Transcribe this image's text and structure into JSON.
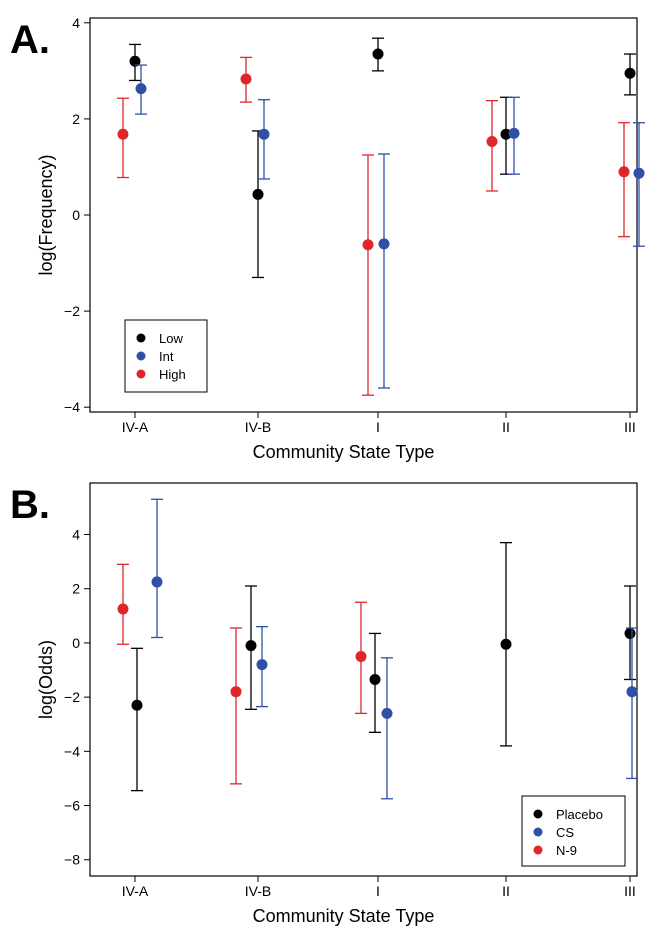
{
  "chart_data": [
    {
      "type": "scatter",
      "panel_label": "A.",
      "xlabel": "Community State Type",
      "ylabel": "log(Frequency)",
      "categories": [
        "IV-A",
        "IV-B",
        "I",
        "II",
        "III"
      ],
      "ylim": [
        -4.1,
        4.1
      ],
      "yticks": [
        -4,
        -2,
        0,
        2,
        4
      ],
      "yticklabels": [
        "−4",
        "−2",
        "0",
        "2",
        "4"
      ],
      "legend_position": "bottom-left",
      "series": [
        {
          "name": "Low",
          "color": "#000000",
          "points": [
            {
              "category": "IV-A",
              "value": 3.2,
              "lower": 2.8,
              "upper": 3.55
            },
            {
              "category": "IV-B",
              "value": 0.43,
              "lower": -1.3,
              "upper": 1.75
            },
            {
              "category": "I",
              "value": 3.35,
              "lower": 3.0,
              "upper": 3.68
            },
            {
              "category": "II",
              "value": 1.68,
              "lower": 0.85,
              "upper": 2.45
            },
            {
              "category": "III",
              "value": 2.95,
              "lower": 2.5,
              "upper": 3.35
            }
          ]
        },
        {
          "name": "Int",
          "color": "#3050a8",
          "points": [
            {
              "category": "IV-A",
              "value": 2.63,
              "lower": 2.1,
              "upper": 3.12
            },
            {
              "category": "IV-B",
              "value": 1.68,
              "lower": 0.75,
              "upper": 2.4
            },
            {
              "category": "I",
              "value": -0.6,
              "lower": -3.6,
              "upper": 1.27
            },
            {
              "category": "II",
              "value": 1.7,
              "lower": 0.85,
              "upper": 2.45
            },
            {
              "category": "III",
              "value": 0.87,
              "lower": -0.65,
              "upper": 1.92
            }
          ]
        },
        {
          "name": "High",
          "color": "#e0262a",
          "points": [
            {
              "category": "IV-A",
              "value": 1.68,
              "lower": 0.78,
              "upper": 2.43
            },
            {
              "category": "IV-B",
              "value": 2.83,
              "lower": 2.35,
              "upper": 3.28
            },
            {
              "category": "I",
              "value": -0.62,
              "lower": -3.75,
              "upper": 1.25
            },
            {
              "category": "II",
              "value": 1.53,
              "lower": 0.5,
              "upper": 2.38
            },
            {
              "category": "III",
              "value": 0.9,
              "lower": -0.45,
              "upper": 1.92
            }
          ]
        }
      ]
    },
    {
      "type": "scatter",
      "panel_label": "B.",
      "xlabel": "Community State Type",
      "ylabel": "log(Odds)",
      "categories": [
        "IV-A",
        "IV-B",
        "I",
        "II",
        "III"
      ],
      "ylim": [
        -8.6,
        5.9
      ],
      "yticks": [
        -8,
        -6,
        -4,
        -2,
        0,
        2,
        4
      ],
      "yticklabels": [
        "−8",
        "−6",
        "−4",
        "−2",
        "0",
        "2",
        "4"
      ],
      "legend_position": "bottom-right",
      "series": [
        {
          "name": "Placebo",
          "color": "#000000",
          "points": [
            {
              "category": "IV-A",
              "value": -2.3,
              "lower": -5.45,
              "upper": -0.2
            },
            {
              "category": "IV-B",
              "value": -0.1,
              "lower": -2.45,
              "upper": 2.1
            },
            {
              "category": "I",
              "value": -1.35,
              "lower": -3.3,
              "upper": 0.35
            },
            {
              "category": "II",
              "value": -0.05,
              "lower": -3.8,
              "upper": 3.7
            },
            {
              "category": "III",
              "value": 0.35,
              "lower": -1.35,
              "upper": 2.1
            }
          ]
        },
        {
          "name": "CS",
          "color": "#3050a8",
          "points": [
            {
              "category": "IV-A",
              "value": 2.25,
              "lower": 0.2,
              "upper": 5.3
            },
            {
              "category": "IV-B",
              "value": -0.8,
              "lower": -2.35,
              "upper": 0.6
            },
            {
              "category": "I",
              "value": -2.6,
              "lower": -5.75,
              "upper": -0.55
            },
            {
              "category": "III",
              "value": -1.8,
              "lower": -5.0,
              "upper": 0.55
            }
          ]
        },
        {
          "name": "N-9",
          "color": "#e0262a",
          "points": [
            {
              "category": "IV-A",
              "value": 1.25,
              "lower": -0.05,
              "upper": 2.9
            },
            {
              "category": "IV-B",
              "value": -1.8,
              "lower": -5.2,
              "upper": 0.55
            },
            {
              "category": "I",
              "value": -0.5,
              "lower": -2.6,
              "upper": 1.5
            }
          ]
        }
      ]
    }
  ]
}
